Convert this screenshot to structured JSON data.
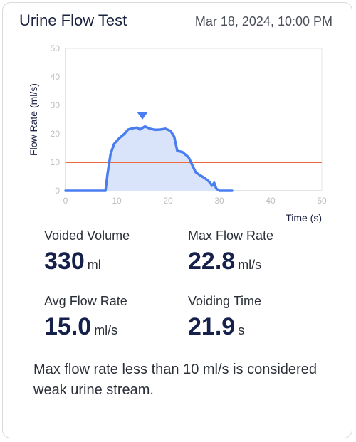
{
  "header": {
    "title": "Urine Flow Test",
    "date": "Mar 18, 2024, 10:00 PM"
  },
  "chart_data": {
    "type": "area",
    "ylabel": "Flow Rate (ml/s)",
    "xlabel": "Time (s)",
    "xlim": [
      0,
      50
    ],
    "ylim": [
      0,
      50
    ],
    "xticks": [
      0,
      10,
      20,
      30,
      40,
      50
    ],
    "yticks": [
      0,
      10,
      20,
      30,
      40,
      50
    ],
    "threshold": 10,
    "peak_time": 15,
    "x": [
      0,
      7.8,
      8.2,
      8.8,
      9.5,
      10.5,
      11.5,
      12.2,
      13.2,
      14.0,
      14.5,
      15.5,
      16.5,
      17.5,
      18.5,
      19.5,
      20.5,
      21.2,
      21.8,
      22.8,
      24.0,
      24.6,
      25.4,
      26.2,
      27.2,
      28.0,
      28.6,
      29.0,
      29.4,
      30.0,
      32.5
    ],
    "y": [
      0,
      0,
      6,
      13,
      16.5,
      18.5,
      20,
      21.5,
      22,
      22.2,
      21.5,
      22.6,
      21.8,
      21.4,
      21.5,
      21.8,
      21,
      19,
      14,
      13.6,
      11.8,
      9.5,
      6.5,
      5.5,
      4.4,
      3.2,
      1.8,
      2.8,
      0.8,
      0,
      0
    ],
    "colors": {
      "line": "#4a7ef0",
      "fill": "#d9e4fb",
      "threshold": "#ee6a3a",
      "axis": "#c8c8c8",
      "tick": "#bdbdbd"
    }
  },
  "stats": [
    {
      "label": "Voided Volume",
      "value": "330",
      "unit": "ml"
    },
    {
      "label": "Max Flow Rate",
      "value": "22.8",
      "unit": "ml/s"
    },
    {
      "label": "Avg Flow Rate",
      "value": "15.0",
      "unit": "ml/s"
    },
    {
      "label": "Voiding Time",
      "value": "21.9",
      "unit": "s"
    }
  ],
  "note": "Max flow rate less than 10 ml/s is considered weak urine stream."
}
